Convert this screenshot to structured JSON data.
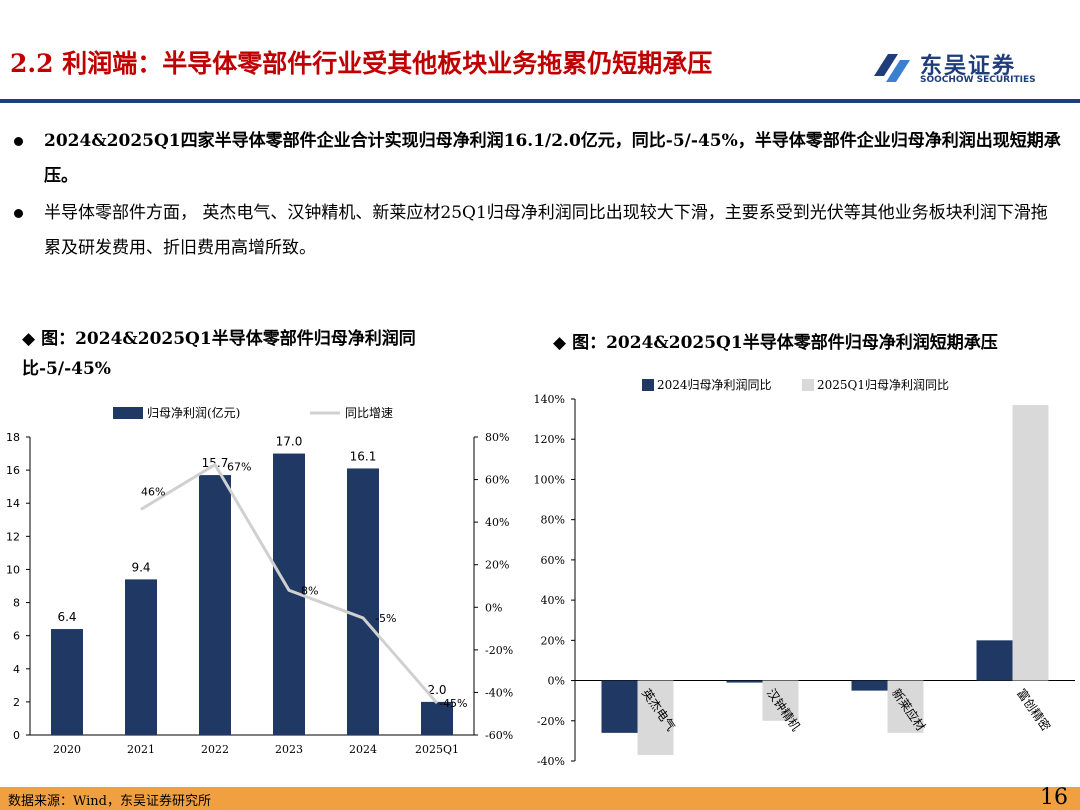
{
  "header": {
    "title": "2.2 利润端：半导体零部件行业受其他板块业务拖累仍短期承压",
    "logo_cn": "东吴证券",
    "logo_en": "SOOCHOW SECURITIES"
  },
  "bullets": [
    "2024&2025Q1四家半导体零部件企业合计实现归母净利润16.1/2.0亿元，同比-5/-45%，半导体零部件企业归母净利润出现短期承压。",
    "半导体零部件方面， 英杰电气、汉钟精机、新莱应材25Q1归母净利润同比出现较大下滑，主要系受到光伏等其他业务板块利润下滑拖累及研发费用、折旧费用高增所致。"
  ],
  "left_chart_caption": "图：2024&2025Q1半导体零部件归母净利润同比-5/-45%",
  "right_chart_caption": "图：2024&2025Q1半导体零部件归母净利润短期承压",
  "footer": {
    "source": "数据来源：Wind，东吴证券研究所",
    "page": "16"
  },
  "colors": {
    "title_red": "#c00000",
    "navy": "#1f3864",
    "light_gray": "#d9d9d9",
    "line_gray": "#d0d0d0",
    "footer_orange": "#f0a040"
  },
  "chart_data": [
    {
      "type": "bar",
      "categories": [
        "2020",
        "2021",
        "2022",
        "2023",
        "2024",
        "2025Q1"
      ],
      "series": [
        {
          "name": "归母净利润(亿元)",
          "type": "bar",
          "axis": "left",
          "values": [
            6.4,
            9.4,
            15.7,
            17.0,
            16.1,
            2.0
          ],
          "labels": [
            "6.4",
            "9.4",
            "15.7",
            "17.0",
            "16.1",
            "2.0"
          ]
        },
        {
          "name": "同比增速",
          "type": "line",
          "axis": "right",
          "values": [
            null,
            46,
            67,
            8,
            -5,
            -45
          ],
          "labels": [
            "",
            "46%",
            "67%",
            "8%",
            "-5%",
            "-45%"
          ]
        }
      ],
      "left_axis": {
        "ylim": [
          0,
          18
        ],
        "ticks": [
          "0",
          "2",
          "4",
          "6",
          "8",
          "10",
          "12",
          "14",
          "16",
          "18"
        ]
      },
      "right_axis": {
        "ylim": [
          -60,
          80
        ],
        "ticks": [
          "-60%",
          "-40%",
          "-20%",
          "0%",
          "20%",
          "40%",
          "60%",
          "80%"
        ]
      },
      "legend": "top"
    },
    {
      "type": "bar",
      "categories": [
        "英杰电气",
        "汉钟精机",
        "新莱应材",
        "富创精密"
      ],
      "series": [
        {
          "name": "2024归母净利润同比",
          "values": [
            -26,
            -1,
            -5,
            20
          ]
        },
        {
          "name": "2025Q1归母净利润同比",
          "values": [
            -37,
            -20,
            -26,
            137
          ]
        }
      ],
      "ylim": [
        -40,
        140
      ],
      "ticks": [
        "-40%",
        "-20%",
        "0%",
        "20%",
        "40%",
        "60%",
        "80%",
        "100%",
        "120%",
        "140%"
      ],
      "legend": "top"
    }
  ]
}
